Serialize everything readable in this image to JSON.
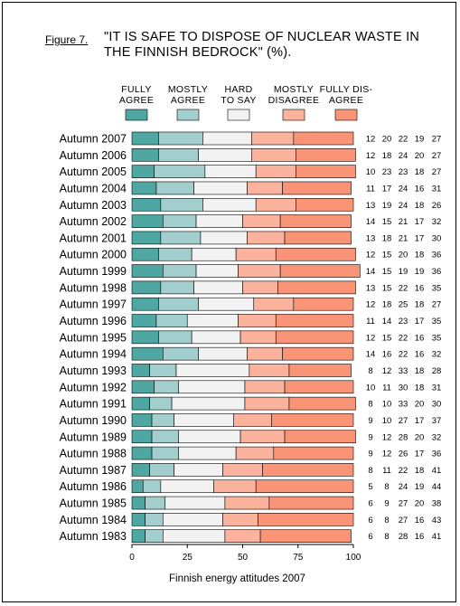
{
  "figure_label": "Figure 7.",
  "title_line1": "\"IT IS SAFE TO DISPOSE OF NUCLEAR WASTE IN",
  "title_line2": "THE FINNISH BEDROCK\" (%).",
  "footer": "Finnish energy attitudes 2007",
  "colors": {
    "fully_agree": "#4fa7a3",
    "mostly_agree": "#a2cfcd",
    "hard_to_say": "#f2f2f2",
    "mostly_disagree": "#fbb39e",
    "fully_disagree": "#f99477"
  },
  "legend": [
    {
      "line1": "FULLY",
      "line2": "AGREE",
      "color_key": "fully_agree"
    },
    {
      "line1": "MOSTLY",
      "line2": "AGREE",
      "color_key": "mostly_agree"
    },
    {
      "line1": "HARD",
      "line2": "TO SAY",
      "color_key": "hard_to_say"
    },
    {
      "line1": "MOSTLY",
      "line2": "DISAGREE",
      "color_key": "mostly_disagree"
    },
    {
      "line1": "FULLY DIS-",
      "line2": "AGREE",
      "color_key": "fully_disagree"
    }
  ],
  "chart_data": {
    "type": "bar",
    "orientation": "horizontal",
    "stacked": true,
    "xlim": [
      0,
      100
    ],
    "xticks": [
      0,
      25,
      50,
      75,
      100
    ],
    "categories": [
      "Autumn 2007",
      "Autumn 2006",
      "Autumn 2005",
      "Autumn 2004",
      "Autumn 2003",
      "Autumn 2002",
      "Autumn 2001",
      "Autumn 2000",
      "Autumn 1999",
      "Autumn 1998",
      "Autumn 1997",
      "Autumn 1996",
      "Autumn 1995",
      "Autumn 1994",
      "Autumn 1993",
      "Autumn 1992",
      "Autumn 1991",
      "Autumn 1990",
      "Autumn 1989",
      "Autumn 1988",
      "Autumn 1987",
      "Autumn 1986",
      "Autumn 1985",
      "Autumn 1984",
      "Autumn 1983"
    ],
    "series": [
      {
        "name": "FULLY AGREE",
        "values": [
          12,
          12,
          10,
          11,
          13,
          14,
          13,
          12,
          14,
          13,
          12,
          11,
          12,
          14,
          8,
          10,
          8,
          9,
          9,
          9,
          8,
          5,
          6,
          6,
          6
        ]
      },
      {
        "name": "MOSTLY AGREE",
        "values": [
          20,
          18,
          23,
          17,
          19,
          15,
          18,
          15,
          15,
          15,
          18,
          14,
          15,
          16,
          12,
          11,
          10,
          10,
          12,
          12,
          11,
          8,
          9,
          8,
          8
        ]
      },
      {
        "name": "HARD TO SAY",
        "values": [
          22,
          24,
          23,
          24,
          24,
          21,
          21,
          20,
          19,
          22,
          25,
          23,
          22,
          22,
          33,
          30,
          33,
          27,
          28,
          26,
          22,
          24,
          27,
          27,
          28
        ]
      },
      {
        "name": "MOSTLY DISAGREE",
        "values": [
          19,
          20,
          18,
          16,
          18,
          17,
          17,
          18,
          19,
          16,
          18,
          17,
          16,
          16,
          18,
          18,
          20,
          17,
          20,
          17,
          18,
          19,
          20,
          16,
          16
        ]
      },
      {
        "name": "FULLY DISAGREE",
        "values": [
          27,
          27,
          27,
          31,
          26,
          32,
          30,
          36,
          36,
          35,
          27,
          35,
          35,
          32,
          28,
          31,
          30,
          37,
          32,
          36,
          41,
          44,
          38,
          43,
          41
        ]
      }
    ]
  }
}
